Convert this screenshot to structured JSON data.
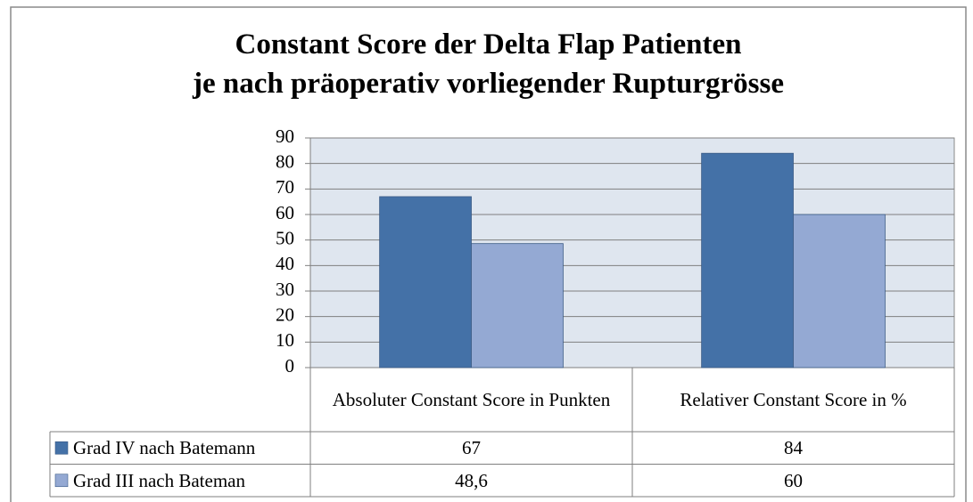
{
  "chart_data": {
    "type": "bar",
    "title": "Constant Score der Delta Flap Patienten\nje nach präoperativ vorliegender Rupturgrösse",
    "categories": [
      "Absoluter Constant Score in Punkten",
      "Relativer Constant Score in %"
    ],
    "series": [
      {
        "name": "Grad IV nach Batemann",
        "color": "#4471a7",
        "values": [
          67,
          84
        ]
      },
      {
        "name": "Grad III nach Bateman",
        "color": "#94a9d3",
        "values": [
          48.6,
          60
        ],
        "value_labels": [
          "48,6",
          "60"
        ]
      }
    ],
    "ylim": [
      0,
      90
    ],
    "yticks": [
      0,
      10,
      20,
      30,
      40,
      50,
      60,
      70,
      80,
      90
    ],
    "grid": true,
    "data_table": true
  }
}
